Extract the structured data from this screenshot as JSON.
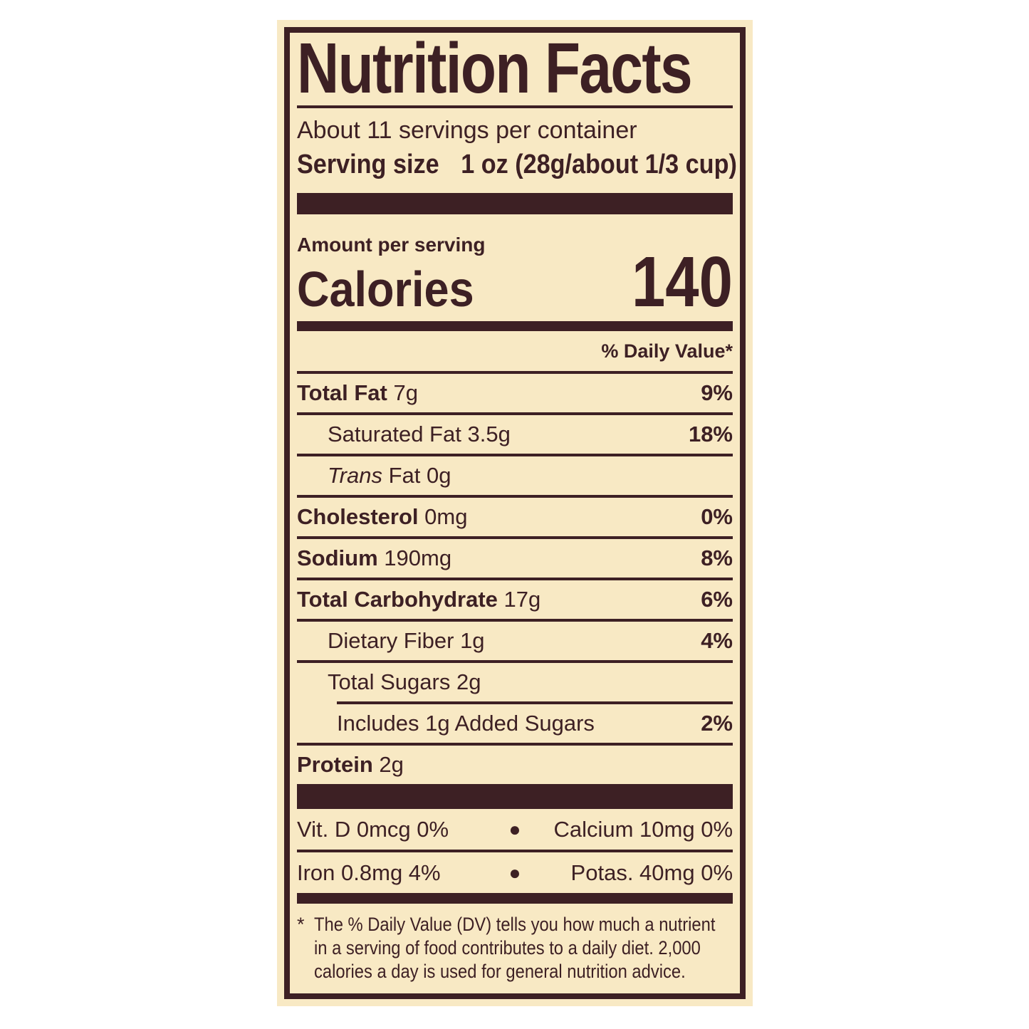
{
  "colors": {
    "page-bg": "#ffffff",
    "label-bg": "#f8e9c4",
    "ink": "#3d2024"
  },
  "label": {
    "title": "Nutrition Facts",
    "servings_per_container": "About 11 servings per container",
    "serving_size_label": "Serving size",
    "serving_size_value": "1 oz (28g/about 1/3 cup)",
    "amount_per_serving": "Amount per serving",
    "calories_label": "Calories",
    "calories_value": "140",
    "daily_value_header": "% Daily Value*"
  },
  "nutrients": [
    {
      "name": "Total Fat",
      "amount": " 7g",
      "dv": "9%"
    },
    {
      "name": "Saturated Fat",
      "amount": " 3.5g",
      "dv": "18%"
    },
    {
      "name": "Trans",
      "amount": " Fat 0g",
      "dv": ""
    },
    {
      "name": "Cholesterol",
      "amount": " 0mg",
      "dv": "0%"
    },
    {
      "name": "Sodium",
      "amount": " 190mg",
      "dv": "8%"
    },
    {
      "name": "Total Carbohydrate",
      "amount": " 17g",
      "dv": "6%"
    },
    {
      "name": "Dietary Fiber",
      "amount": " 1g",
      "dv": "4%"
    },
    {
      "name": "Total Sugars",
      "amount": " 2g",
      "dv": ""
    },
    {
      "name": "Includes 1g Added Sugars",
      "amount": "",
      "dv": "2%"
    },
    {
      "name": "Protein",
      "amount": " 2g",
      "dv": ""
    }
  ],
  "vitamins": {
    "separator": "●",
    "rows": [
      {
        "left": "Vit. D 0mcg 0%",
        "right": "Calcium 10mg 0%"
      },
      {
        "left": "Iron 0.8mg 4%",
        "right": "Potas. 40mg 0%"
      }
    ]
  },
  "footnote": {
    "marker": "*",
    "lines": [
      "The % Daily Value (DV) tells you how much a nutrient",
      "in a serving of food contributes to a daily diet. 2,000",
      "calories a day is used for general nutrition advice."
    ]
  }
}
